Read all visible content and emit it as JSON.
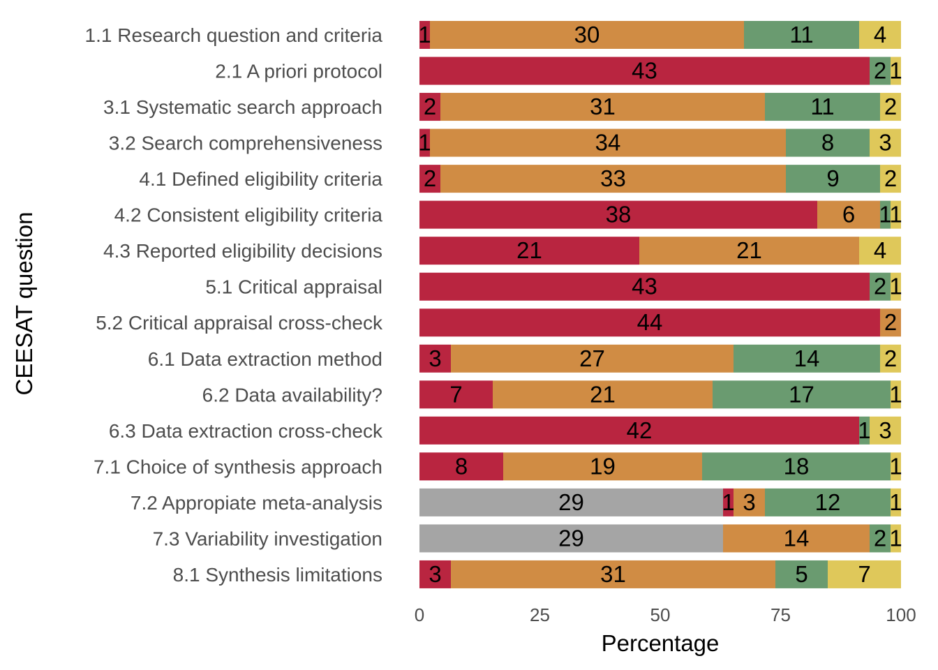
{
  "chart_data": {
    "type": "bar",
    "orientation": "horizontal",
    "stacked": true,
    "normalized": true,
    "xlabel": "Percentage",
    "ylabel": "CEESAT question",
    "xlim": [
      0,
      100
    ],
    "xticks": [
      "0",
      "25",
      "50",
      "75",
      "100"
    ],
    "grid": false,
    "legend": "none",
    "categories": [
      "1.1 Research question and criteria",
      "2.1 A priori protocol",
      "3.1 Systematic search approach",
      "3.2 Search comprehensiveness",
      "4.1 Defined eligibility criteria",
      "4.2 Consistent eligibility criteria",
      "4.3 Reported eligibility decisions",
      "5.1 Critical appraisal",
      "5.2 Critical appraisal cross-check",
      "6.1 Data extraction method",
      "6.2 Data availability?",
      "6.3 Data extraction cross-check",
      "7.1 Choice of synthesis approach",
      "7.2 Appropiate meta-analysis",
      "7.3 Variability investigation",
      "8.1 Synthesis limitations"
    ],
    "series": [
      {
        "color": "#a5a5a5",
        "values": [
          0,
          0,
          0,
          0,
          0,
          0,
          0,
          0,
          0,
          0,
          0,
          0,
          0,
          29,
          29,
          0
        ]
      },
      {
        "color": "#b92540",
        "values": [
          1,
          43,
          2,
          1,
          2,
          38,
          21,
          43,
          44,
          3,
          7,
          42,
          8,
          1,
          0,
          3
        ]
      },
      {
        "color": "#d08c44",
        "values": [
          30,
          0,
          31,
          34,
          33,
          6,
          21,
          0,
          2,
          27,
          21,
          0,
          19,
          3,
          14,
          31
        ]
      },
      {
        "color": "#6a9b70",
        "values": [
          11,
          2,
          11,
          8,
          9,
          1,
          0,
          2,
          0,
          14,
          17,
          1,
          18,
          12,
          2,
          5
        ]
      },
      {
        "color": "#dfc85a",
        "values": [
          4,
          1,
          2,
          3,
          2,
          1,
          4,
          1,
          0,
          2,
          1,
          3,
          1,
          1,
          1,
          7
        ]
      }
    ]
  }
}
